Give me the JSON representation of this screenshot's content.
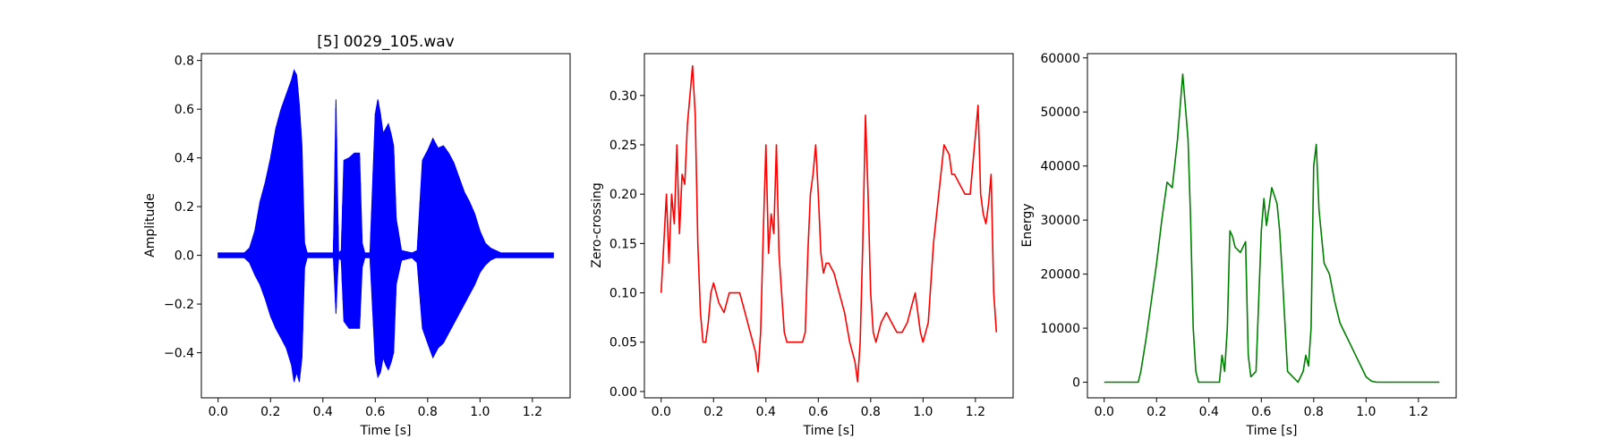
{
  "chart_data": [
    {
      "type": "line",
      "title": "[5] 0029_105.wav",
      "xlabel": "Time [s]",
      "ylabel": "Amplitude",
      "xlim": [
        -0.064,
        1.344
      ],
      "ylim": [
        -0.585,
        0.828
      ],
      "xticks": [
        0.0,
        0.2,
        0.4,
        0.6,
        0.8,
        1.0,
        1.2
      ],
      "xtick_labels": [
        "0.0",
        "0.2",
        "0.4",
        "0.6",
        "0.8",
        "1.0",
        "1.2"
      ],
      "yticks": [
        -0.4,
        -0.2,
        0.0,
        0.2,
        0.4,
        0.6,
        0.8
      ],
      "ytick_labels": [
        "−0.4",
        "−0.2",
        "0.0",
        "0.2",
        "0.4",
        "0.6",
        "0.8"
      ],
      "color": "#0000ff",
      "style": "waveform",
      "x": [
        0.0,
        0.05,
        0.1,
        0.12,
        0.14,
        0.16,
        0.18,
        0.2,
        0.22,
        0.24,
        0.26,
        0.28,
        0.29,
        0.3,
        0.31,
        0.32,
        0.33,
        0.34,
        0.36,
        0.38,
        0.42,
        0.44,
        0.45,
        0.455,
        0.46,
        0.47,
        0.48,
        0.5,
        0.52,
        0.54,
        0.55,
        0.56,
        0.58,
        0.6,
        0.61,
        0.62,
        0.63,
        0.64,
        0.65,
        0.66,
        0.67,
        0.68,
        0.7,
        0.74,
        0.76,
        0.78,
        0.8,
        0.82,
        0.84,
        0.86,
        0.88,
        0.9,
        0.92,
        0.94,
        0.96,
        0.98,
        1.0,
        1.02,
        1.04,
        1.06,
        1.08,
        1.1,
        1.2,
        1.28
      ],
      "upper": [
        0.01,
        0.01,
        0.01,
        0.03,
        0.1,
        0.22,
        0.3,
        0.4,
        0.52,
        0.6,
        0.66,
        0.72,
        0.76,
        0.74,
        0.62,
        0.45,
        0.05,
        0.01,
        0.01,
        0.01,
        0.01,
        0.01,
        0.64,
        0.3,
        0.01,
        0.02,
        0.39,
        0.4,
        0.42,
        0.42,
        0.05,
        0.01,
        0.01,
        0.58,
        0.64,
        0.58,
        0.5,
        0.52,
        0.54,
        0.5,
        0.45,
        0.15,
        0.02,
        0.01,
        0.02,
        0.39,
        0.43,
        0.48,
        0.44,
        0.45,
        0.42,
        0.38,
        0.32,
        0.26,
        0.22,
        0.17,
        0.1,
        0.05,
        0.03,
        0.02,
        0.01,
        0.01,
        0.01,
        0.01
      ],
      "lower": [
        -0.01,
        -0.01,
        -0.01,
        -0.03,
        -0.08,
        -0.12,
        -0.18,
        -0.25,
        -0.3,
        -0.34,
        -0.38,
        -0.45,
        -0.52,
        -0.48,
        -0.52,
        -0.42,
        -0.05,
        -0.01,
        -0.01,
        -0.01,
        -0.01,
        -0.01,
        -0.24,
        -0.1,
        -0.01,
        -0.02,
        -0.27,
        -0.3,
        -0.3,
        -0.3,
        -0.05,
        -0.01,
        -0.01,
        -0.44,
        -0.5,
        -0.48,
        -0.42,
        -0.45,
        -0.47,
        -0.44,
        -0.4,
        -0.12,
        -0.02,
        -0.01,
        -0.03,
        -0.3,
        -0.36,
        -0.42,
        -0.38,
        -0.36,
        -0.32,
        -0.28,
        -0.24,
        -0.2,
        -0.16,
        -0.12,
        -0.07,
        -0.04,
        -0.02,
        -0.01,
        -0.01,
        -0.01,
        -0.01,
        -0.01
      ]
    },
    {
      "type": "line",
      "title": "",
      "xlabel": "Time [s]",
      "ylabel": "Zero-crossing",
      "xlim": [
        -0.064,
        1.344
      ],
      "ylim": [
        -0.0064,
        0.3424
      ],
      "xticks": [
        0.0,
        0.2,
        0.4,
        0.6,
        0.8,
        1.0,
        1.2
      ],
      "xtick_labels": [
        "0.0",
        "0.2",
        "0.4",
        "0.6",
        "0.8",
        "1.0",
        "1.2"
      ],
      "yticks": [
        0.0,
        0.05,
        0.1,
        0.15,
        0.2,
        0.25,
        0.3
      ],
      "ytick_labels": [
        "0.00",
        "0.05",
        "0.10",
        "0.15",
        "0.20",
        "0.25",
        "0.30"
      ],
      "color": "#ff0000",
      "style": "line",
      "x": [
        0.0,
        0.01,
        0.02,
        0.03,
        0.04,
        0.05,
        0.06,
        0.07,
        0.08,
        0.09,
        0.1,
        0.11,
        0.12,
        0.13,
        0.14,
        0.15,
        0.16,
        0.17,
        0.18,
        0.19,
        0.2,
        0.22,
        0.24,
        0.26,
        0.28,
        0.3,
        0.32,
        0.34,
        0.36,
        0.37,
        0.38,
        0.39,
        0.4,
        0.41,
        0.42,
        0.43,
        0.44,
        0.45,
        0.46,
        0.47,
        0.48,
        0.5,
        0.52,
        0.54,
        0.55,
        0.56,
        0.57,
        0.58,
        0.59,
        0.6,
        0.61,
        0.62,
        0.63,
        0.64,
        0.66,
        0.68,
        0.7,
        0.72,
        0.74,
        0.75,
        0.76,
        0.77,
        0.78,
        0.79,
        0.8,
        0.81,
        0.82,
        0.84,
        0.86,
        0.88,
        0.9,
        0.92,
        0.94,
        0.96,
        0.97,
        0.98,
        0.99,
        1.0,
        1.02,
        1.04,
        1.06,
        1.08,
        1.1,
        1.11,
        1.12,
        1.14,
        1.16,
        1.18,
        1.2,
        1.21,
        1.22,
        1.23,
        1.24,
        1.25,
        1.26,
        1.27,
        1.28
      ],
      "values": [
        0.1,
        0.15,
        0.2,
        0.13,
        0.2,
        0.17,
        0.25,
        0.16,
        0.22,
        0.21,
        0.27,
        0.3,
        0.33,
        0.28,
        0.15,
        0.08,
        0.05,
        0.05,
        0.07,
        0.1,
        0.11,
        0.09,
        0.08,
        0.1,
        0.1,
        0.1,
        0.08,
        0.06,
        0.04,
        0.02,
        0.06,
        0.16,
        0.25,
        0.14,
        0.18,
        0.16,
        0.25,
        0.14,
        0.1,
        0.06,
        0.05,
        0.05,
        0.05,
        0.05,
        0.06,
        0.14,
        0.2,
        0.22,
        0.25,
        0.2,
        0.14,
        0.12,
        0.13,
        0.13,
        0.12,
        0.1,
        0.08,
        0.05,
        0.03,
        0.01,
        0.05,
        0.15,
        0.28,
        0.2,
        0.1,
        0.06,
        0.05,
        0.07,
        0.08,
        0.07,
        0.06,
        0.06,
        0.07,
        0.09,
        0.1,
        0.08,
        0.06,
        0.05,
        0.07,
        0.15,
        0.2,
        0.25,
        0.24,
        0.22,
        0.22,
        0.21,
        0.2,
        0.2,
        0.26,
        0.29,
        0.2,
        0.18,
        0.17,
        0.19,
        0.22,
        0.1,
        0.06
      ]
    },
    {
      "type": "line",
      "title": "",
      "xlabel": "Time [s]",
      "ylabel": "Energy",
      "xlim": [
        -0.064,
        1.344
      ],
      "ylim": [
        -2888,
        60788
      ],
      "xticks": [
        0.0,
        0.2,
        0.4,
        0.6,
        0.8,
        1.0,
        1.2
      ],
      "xtick_labels": [
        "0.0",
        "0.2",
        "0.4",
        "0.6",
        "0.8",
        "1.0",
        "1.2"
      ],
      "yticks": [
        0,
        10000,
        20000,
        30000,
        40000,
        50000,
        60000
      ],
      "ytick_labels": [
        "0",
        "10000",
        "20000",
        "30000",
        "40000",
        "50000",
        "60000"
      ],
      "color": "#008000",
      "style": "line",
      "x": [
        0.0,
        0.05,
        0.1,
        0.13,
        0.14,
        0.15,
        0.16,
        0.18,
        0.2,
        0.22,
        0.24,
        0.26,
        0.28,
        0.3,
        0.32,
        0.33,
        0.34,
        0.35,
        0.36,
        0.38,
        0.42,
        0.44,
        0.45,
        0.46,
        0.47,
        0.48,
        0.49,
        0.5,
        0.52,
        0.53,
        0.54,
        0.55,
        0.56,
        0.58,
        0.6,
        0.61,
        0.62,
        0.64,
        0.66,
        0.67,
        0.68,
        0.7,
        0.74,
        0.76,
        0.77,
        0.78,
        0.79,
        0.8,
        0.81,
        0.82,
        0.84,
        0.86,
        0.88,
        0.9,
        0.92,
        0.94,
        0.96,
        0.98,
        1.0,
        1.02,
        1.04,
        1.06,
        1.1,
        1.2,
        1.28
      ],
      "values": [
        0,
        0,
        0,
        0,
        2000,
        5000,
        8000,
        15000,
        22000,
        30000,
        37000,
        36000,
        45000,
        57000,
        45000,
        30000,
        10000,
        2000,
        0,
        0,
        0,
        0,
        5000,
        2000,
        10000,
        28000,
        27000,
        25000,
        24000,
        25000,
        26000,
        5000,
        1000,
        2000,
        28000,
        34000,
        29000,
        36000,
        33000,
        28000,
        20000,
        2000,
        0,
        2000,
        5000,
        3000,
        10000,
        40000,
        44000,
        32000,
        22000,
        20000,
        15000,
        11000,
        9000,
        7000,
        5000,
        3000,
        1000,
        200,
        0,
        0,
        0,
        0,
        0
      ]
    }
  ]
}
